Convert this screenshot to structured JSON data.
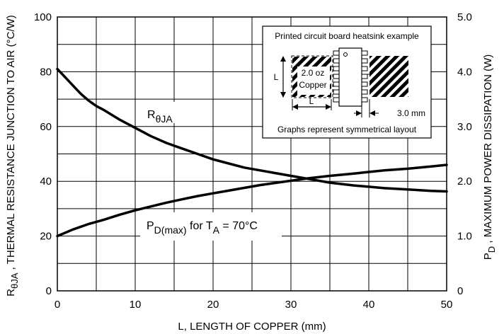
{
  "chart_data": {
    "type": "line",
    "xlabel": "L, LENGTH OF COPPER (mm)",
    "ylabel": "RθJA , THERMAL RESISTANCE JUNCTION TO AIR (°C/W)",
    "ylabel_parts": {
      "sym": "R",
      "sub": "θJA",
      "rest": " , THERMAL RESISTANCE JUNCTION TO AIR (°C/W)"
    },
    "y2label": "PD , MAXIMUM POWER DISSIPATION (W)",
    "y2label_parts": {
      "sym": "P",
      "sub": "D",
      "rest": " , MAXIMUM POWER DISSIPATION (W)"
    },
    "xlim": [
      0,
      50
    ],
    "ylim": [
      0,
      100
    ],
    "y2lim": [
      0,
      5
    ],
    "x_ticks": [
      0,
      10,
      20,
      30,
      40,
      50
    ],
    "y_ticks": [
      0,
      20,
      40,
      60,
      80,
      100
    ],
    "y2_ticks": [
      "0",
      "1.0",
      "2.0",
      "3.0",
      "4.0",
      "5.0"
    ],
    "grid": true,
    "series": [
      {
        "name": "RθJA",
        "label_parts": {
          "sym": "R",
          "sub": "θJA"
        },
        "axis": "left",
        "x": [
          0,
          1,
          2,
          3,
          4,
          5,
          6,
          8,
          10,
          12,
          14,
          16,
          18,
          20,
          22,
          24,
          26,
          28,
          30,
          32,
          35,
          38,
          40,
          42,
          45,
          48,
          50
        ],
        "y": [
          81,
          78,
          75,
          72,
          69.5,
          67.5,
          66,
          62.5,
          59.5,
          56.5,
          54,
          52,
          50,
          48,
          46.5,
          45,
          44,
          43,
          42,
          41,
          39.5,
          38.5,
          38,
          37.5,
          37,
          36.5,
          36.3
        ]
      },
      {
        "name": "PD(max) for TA = 70°C",
        "label_parts": {
          "p": "P",
          "p_sub": "D(max)",
          "mid": " for T",
          "t_sub": "A",
          "rest": " = 70°C"
        },
        "axis": "right",
        "x": [
          0,
          2,
          4,
          6,
          8,
          10,
          12,
          14,
          16,
          18,
          20,
          22,
          24,
          26,
          28,
          30,
          32,
          35,
          38,
          40,
          42,
          45,
          48,
          50
        ],
        "y": [
          1.0,
          1.12,
          1.22,
          1.3,
          1.39,
          1.47,
          1.54,
          1.61,
          1.67,
          1.73,
          1.78,
          1.83,
          1.88,
          1.93,
          1.97,
          2.01,
          2.05,
          2.1,
          2.14,
          2.17,
          2.2,
          2.23,
          2.27,
          2.3
        ]
      }
    ],
    "inset": {
      "title": "Printed circuit board heatsink example",
      "length_label": "L",
      "copper_weight": "2.0 oz",
      "copper_label": "Copper",
      "spacing_label": "3.0 mm",
      "caption": "Graphs represent symmetrical layout"
    }
  }
}
